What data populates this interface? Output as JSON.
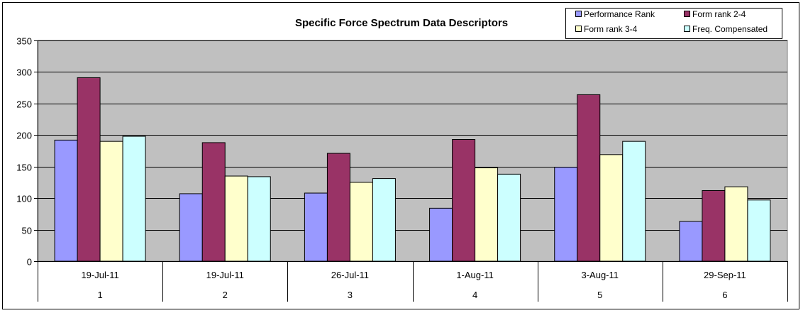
{
  "chart_data": {
    "type": "bar",
    "title": "Specific Force Spectrum Data Descriptors",
    "xlabel": "",
    "ylabel": "",
    "ylim": [
      0,
      350
    ],
    "yticks": [
      0,
      50,
      100,
      150,
      200,
      250,
      300,
      350
    ],
    "grid": true,
    "legend_position": "top-right",
    "categories": [
      {
        "date": "19-Jul-11",
        "index": "1"
      },
      {
        "date": "19-Jul-11",
        "index": "2"
      },
      {
        "date": "26-Jul-11",
        "index": "3"
      },
      {
        "date": "1-Aug-11",
        "index": "4"
      },
      {
        "date": "3-Aug-11",
        "index": "5"
      },
      {
        "date": "29-Sep-11",
        "index": "6"
      }
    ],
    "series": [
      {
        "name": "Performance Rank",
        "color": "#9999ff",
        "values": [
          192,
          107,
          108,
          84,
          149,
          63
        ]
      },
      {
        "name": "Form rank 2-4",
        "color": "#993366",
        "values": [
          291,
          188,
          171,
          193,
          264,
          112
        ]
      },
      {
        "name": "Form rank 3-4",
        "color": "#ffffcc",
        "values": [
          190,
          135,
          125,
          148,
          169,
          118
        ]
      },
      {
        "name": "Freq. Compensated",
        "color": "#ccffff",
        "values": [
          198,
          134,
          131,
          138,
          190,
          97
        ]
      }
    ],
    "plot_background": "#c0c0c0"
  }
}
